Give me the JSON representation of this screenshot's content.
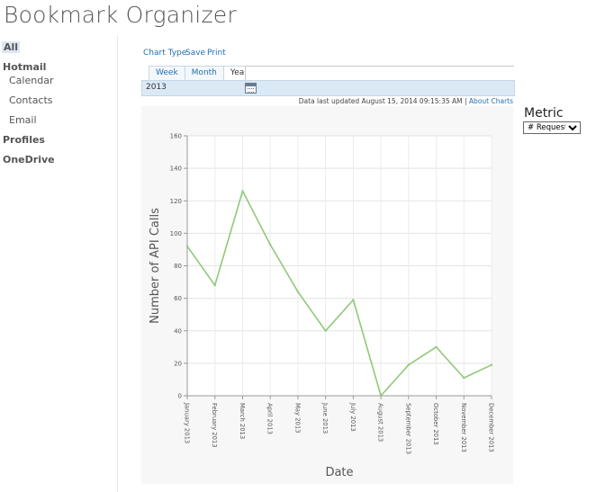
{
  "app": {
    "title": "Bookmark Organizer"
  },
  "sidebar": {
    "items": [
      {
        "label": "All",
        "selected": true
      },
      {
        "label": "Hotmail"
      },
      {
        "label": "Calendar"
      },
      {
        "label": "Contacts"
      },
      {
        "label": "Email"
      },
      {
        "label": "Profiles"
      },
      {
        "label": "OneDrive"
      }
    ]
  },
  "toolbar": {
    "chart_type": "Chart Type",
    "save": "Save",
    "print": "Print"
  },
  "tabs": [
    {
      "label": "Week"
    },
    {
      "label": "Month"
    },
    {
      "label": "Year",
      "active": true
    }
  ],
  "date_picker": {
    "value": "2013"
  },
  "status": {
    "updated": "Data last updated August 15, 2014 09:15:35 AM |",
    "about": "About Charts"
  },
  "metric": {
    "label": "Metric",
    "selected": "# Requests"
  },
  "colors": {
    "line": "#90c978",
    "accent": "#1f6fb2"
  },
  "chart_data": {
    "type": "line",
    "xlabel": "Date",
    "ylabel": "Number of API Calls",
    "ylim": [
      0,
      160
    ],
    "yticks": [
      0,
      20,
      40,
      60,
      80,
      100,
      120,
      140,
      160
    ],
    "grid": true,
    "categories": [
      "January 2013",
      "February 2013",
      "March 2013",
      "April 2013",
      "May 2013",
      "June 2013",
      "July 2013",
      "August 2013",
      "September 2013",
      "October 2013",
      "November 2013",
      "December 2013"
    ],
    "series": [
      {
        "values": [
          92,
          68,
          126,
          93,
          64,
          40,
          59,
          0,
          19,
          30,
          11,
          19
        ]
      }
    ]
  }
}
